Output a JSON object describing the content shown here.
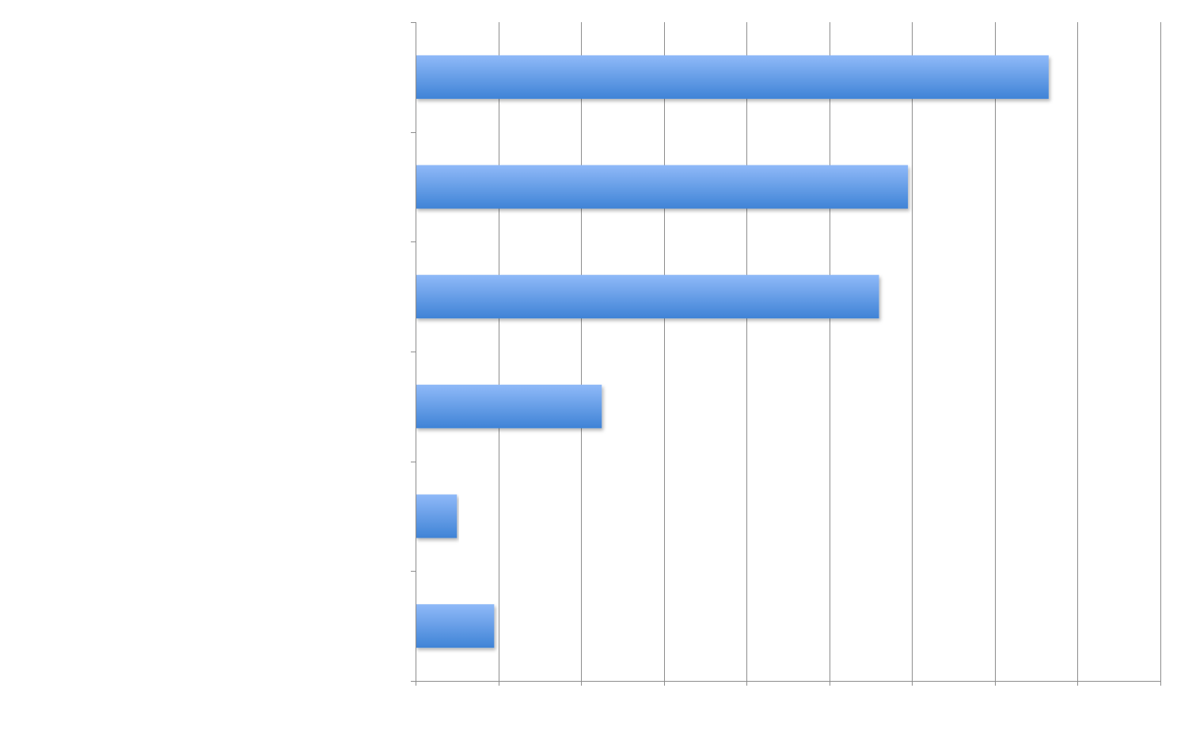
{
  "chart_data": {
    "type": "bar",
    "orientation": "horizontal",
    "title": "",
    "xlabel": "",
    "ylabel": "",
    "xlim": [
      0,
      9
    ],
    "grid": true,
    "legend": "none",
    "categories": [
      "",
      "",
      "",
      "",
      "",
      ""
    ],
    "values": [
      7.65,
      5.95,
      5.6,
      2.25,
      0.5,
      0.95
    ],
    "bar_color_top": "#8fb9f8",
    "bar_color_bottom": "#3f83d6",
    "grid_color": "#8c8c8c",
    "background": "#ffffff"
  }
}
